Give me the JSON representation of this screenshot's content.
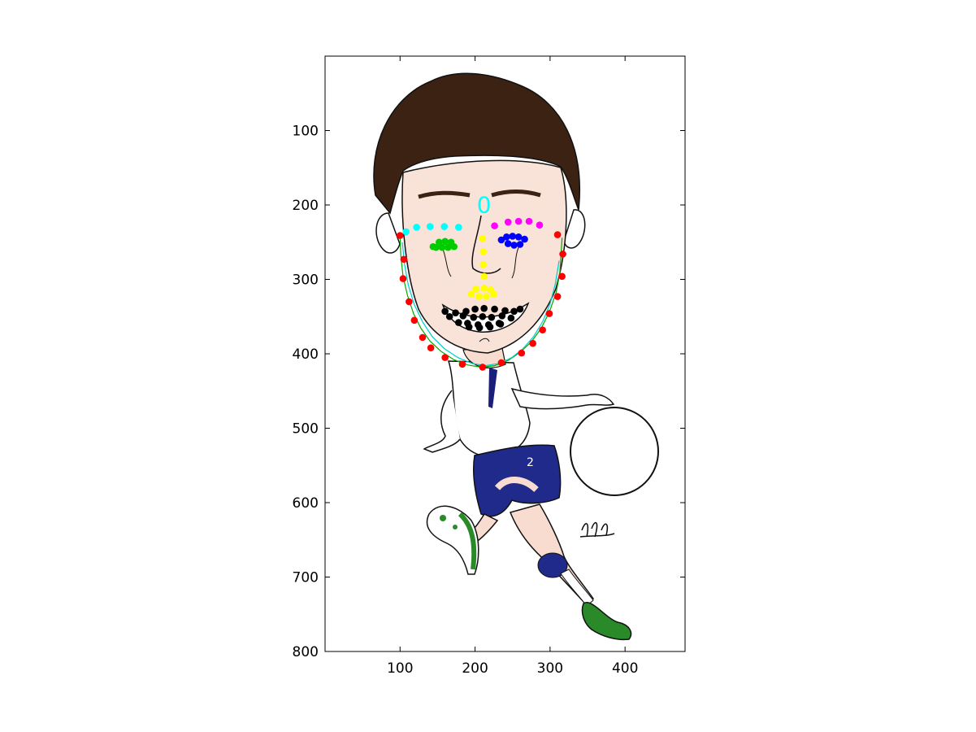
{
  "figure": {
    "annotation_text": "0",
    "annotation_color": "#00ffff"
  },
  "chart_data": {
    "type": "scatter",
    "title": "",
    "xlabel": "",
    "ylabel": "",
    "xlim": [
      0,
      480
    ],
    "ylim": [
      800,
      0
    ],
    "y_axis_reversed": true,
    "grid": false,
    "background_image": "caricature-soccer-player",
    "x_ticks": [
      100,
      200,
      300,
      400
    ],
    "y_ticks": [
      100,
      200,
      300,
      400,
      500,
      600,
      700,
      800
    ],
    "x_tick_labels": [
      "100",
      "200",
      "300",
      "400"
    ],
    "y_tick_labels": [
      "100",
      "200",
      "300",
      "400",
      "500",
      "600",
      "700",
      "800"
    ],
    "annotations": [
      {
        "text": "0",
        "x": 212,
        "y": 195,
        "color": "#00ffff"
      }
    ],
    "series": [
      {
        "color": "#ff0000",
        "marker": "dot",
        "x": [
          100,
          105,
          104,
          112,
          119,
          130,
          141,
          160,
          183,
          210,
          235,
          262,
          277,
          290,
          299,
          310,
          316,
          317,
          310
        ],
        "y": [
          241,
          273,
          299,
          330,
          355,
          378,
          392,
          405,
          414,
          418,
          412,
          399,
          386,
          368,
          346,
          323,
          296,
          266,
          240
        ]
      },
      {
        "color": "#00ffff",
        "marker": "dot",
        "x": [
          108,
          122,
          140,
          159,
          178
        ],
        "y": [
          236,
          230,
          229,
          229,
          230
        ]
      },
      {
        "color": "#ff00ff",
        "marker": "dot",
        "x": [
          226,
          244,
          258,
          272,
          286
        ],
        "y": [
          228,
          223,
          222,
          222,
          227
        ]
      },
      {
        "color": "#00cc00",
        "marker": "dot",
        "x": [
          144,
          152,
          160,
          168,
          172,
          164,
          156,
          148
        ],
        "y": [
          256,
          250,
          249,
          250,
          256,
          257,
          257,
          257
        ]
      },
      {
        "color": "#0000ff",
        "marker": "dot",
        "x": [
          235,
          242,
          250,
          258,
          266,
          260,
          252,
          244
        ],
        "y": [
          247,
          243,
          242,
          243,
          246,
          253,
          254,
          252
        ]
      },
      {
        "color": "#ffff00",
        "marker": "dot",
        "x": [
          210,
          211,
          211,
          212,
          212,
          195,
          205,
          215,
          225,
          201,
          221
        ],
        "y": [
          245,
          263,
          280,
          296,
          312,
          320,
          323,
          323,
          320,
          313,
          314
        ]
      },
      {
        "color": "#000000",
        "marker": "dot",
        "x": [
          160,
          174,
          188,
          200,
          212,
          226,
          240,
          252,
          260,
          248,
          234,
          220,
          206,
          192,
          178,
          166,
          184,
          198,
          210,
          222,
          236,
          190,
          204,
          218,
          232
        ],
        "y": [
          343,
          345,
          343,
          340,
          339,
          340,
          342,
          343,
          340,
          352,
          360,
          364,
          365,
          364,
          358,
          350,
          349,
          351,
          350,
          351,
          349,
          359,
          361,
          361,
          359
        ]
      }
    ],
    "curves": [
      {
        "color": "#00aa00",
        "x": [
          100,
          101,
          104,
          110,
          118,
          128,
          140,
          155,
          172,
          190,
          208,
          226,
          244,
          260,
          275,
          288,
          299,
          308,
          313,
          316
        ],
        "y": [
          240,
          268,
          296,
          322,
          346,
          366,
          383,
          397,
          408,
          415,
          418,
          416,
          409,
          398,
          384,
          366,
          344,
          318,
          292,
          244
        ]
      },
      {
        "color": "#00cccc",
        "x": [
          103,
          106,
          111,
          119,
          130,
          143,
          159,
          177,
          196,
          214,
          232,
          249,
          264,
          278,
          290,
          300,
          307,
          312
        ],
        "y": [
          250,
          280,
          308,
          334,
          357,
          377,
          393,
          405,
          413,
          416,
          413,
          405,
          393,
          377,
          357,
          333,
          306,
          275
        ]
      }
    ]
  }
}
